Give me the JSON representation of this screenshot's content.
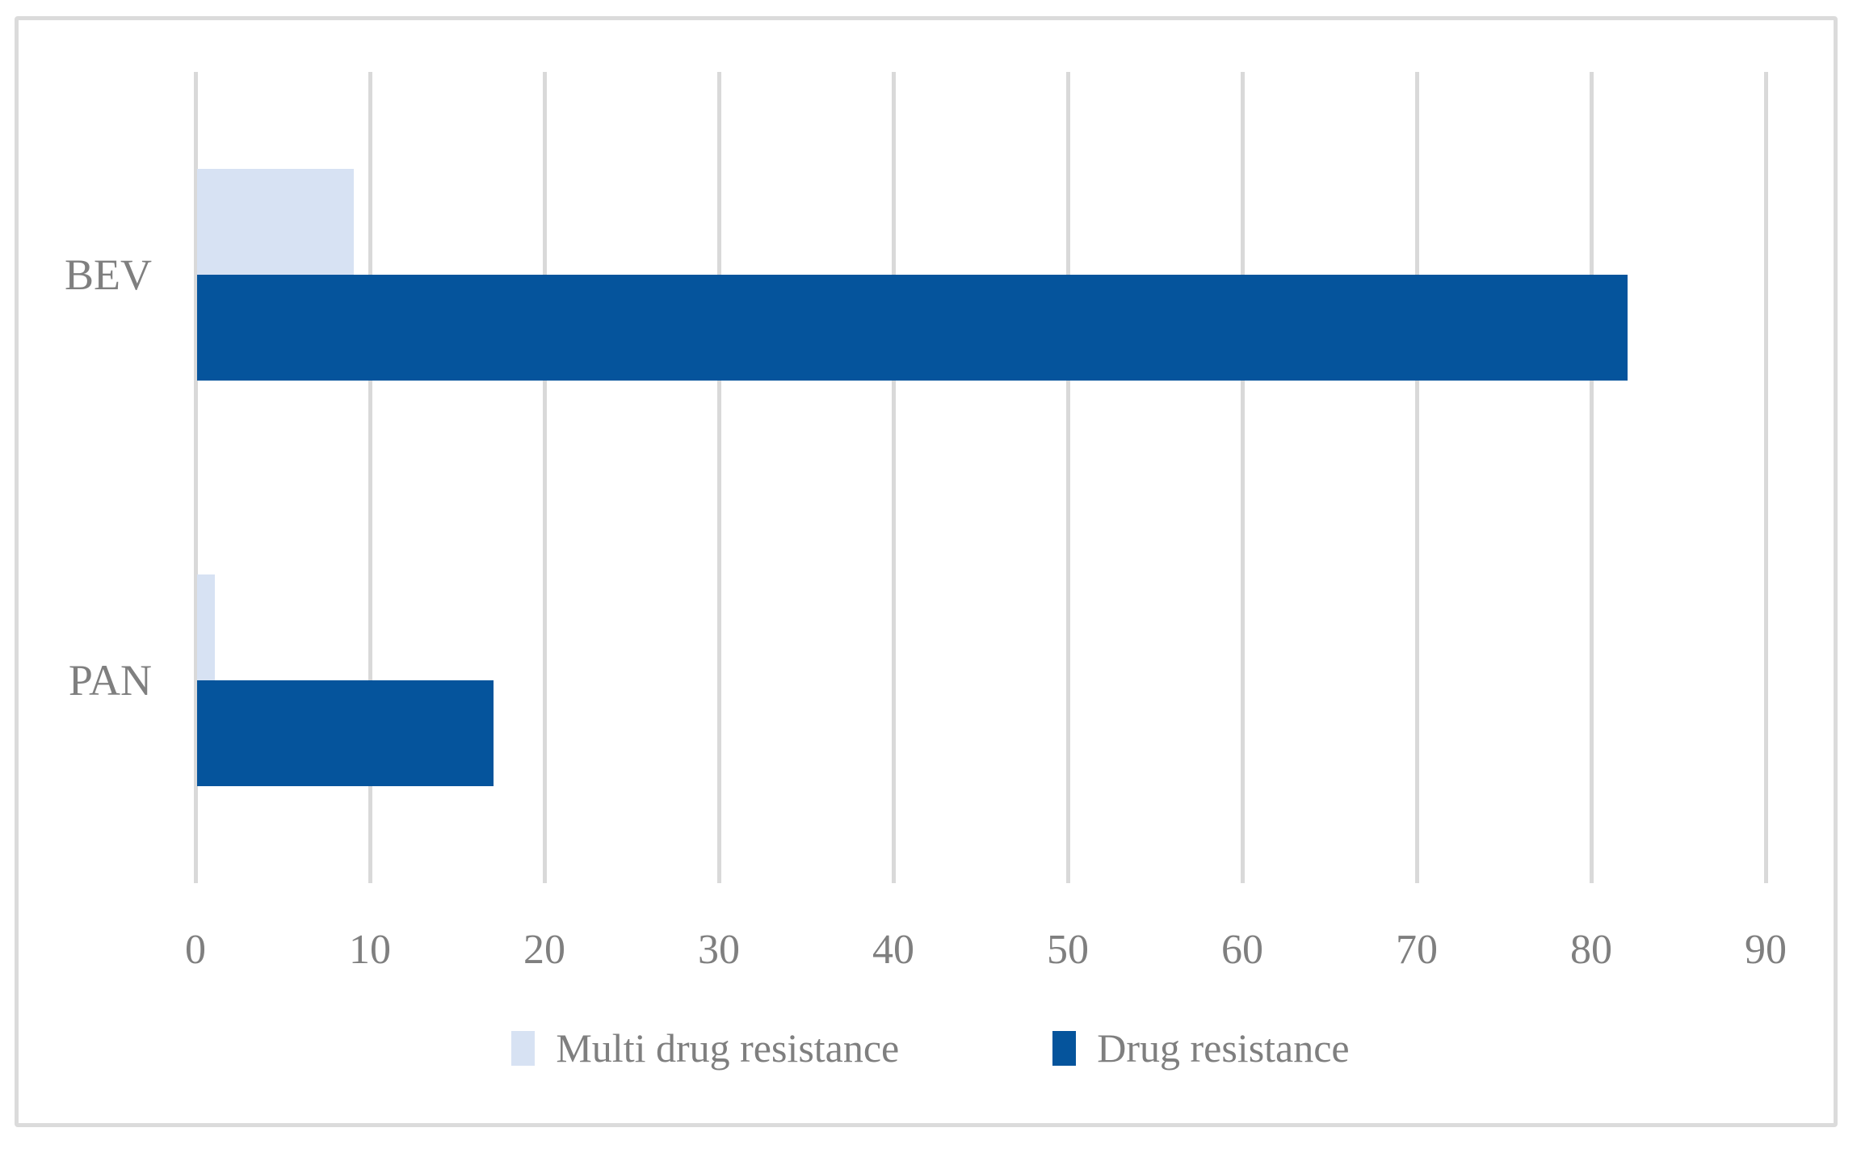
{
  "chart_data": {
    "type": "bar",
    "orientation": "horizontal",
    "title": "",
    "xlabel": "",
    "ylabel": "",
    "categories": [
      "BEV",
      "PAN"
    ],
    "series": [
      {
        "name": "Multi drug resistance",
        "color": "#D7E2F3",
        "values": [
          9,
          1
        ]
      },
      {
        "name": "Drug resistance",
        "color": "#05549C",
        "values": [
          82,
          17
        ]
      }
    ],
    "xlim": [
      0,
      90
    ],
    "x_ticks": [
      0,
      10,
      20,
      30,
      40,
      50,
      60,
      70,
      80,
      90
    ],
    "grid": "vertical-gridlines-on",
    "legend_position": "bottom-center"
  },
  "styles": {
    "gridline_color": "#D9D9D9",
    "border_color": "#DBDBDB",
    "text_color": "#7F7F7F",
    "background_color": "#FFFFFF"
  }
}
